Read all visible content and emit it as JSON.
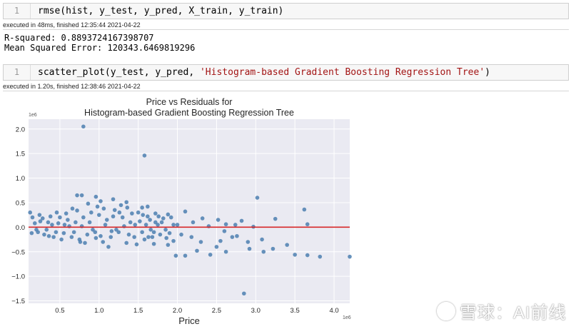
{
  "cells": [
    {
      "line_number": "1",
      "code": "rmse(hist, y_test, y_pred, X_train, y_train)",
      "exec_info": "executed in 48ms, finished 12:35:44 2021-04-22",
      "output": [
        "R-squared: 0.8893724167398707",
        "Mean Squared Error: 120343.6469819296"
      ]
    },
    {
      "line_number": "1",
      "code_prefix": "scatter_plot(y_test, y_pred, ",
      "code_string": "'Histogram-based Gradient Boosting Regression Tree'",
      "code_suffix": ")",
      "exec_info": "executed in 1.20s, finished 12:38:46 2021-04-22"
    }
  ],
  "watermark": "雪球：AI前线",
  "colors": {
    "points": "#4c7fb0",
    "fit_line": "#d62728",
    "plot_bg": "#eaeaf2",
    "grid": "#ffffff"
  },
  "chart_data": {
    "type": "scatter",
    "title": [
      "Price vs Residuals for",
      "Histogram-based Gradient Boosting Regression Tree"
    ],
    "xlabel": "Price",
    "ylabel": "",
    "x_offset_label": "1e6",
    "y_offset_label": "1e6",
    "xlim": [
      0.1,
      4.2
    ],
    "ylim": [
      -1.55,
      2.2
    ],
    "xticks": [
      0.5,
      1.0,
      1.5,
      2.0,
      2.5,
      3.0,
      3.5,
      4.0
    ],
    "xtick_labels": [
      "0.5",
      "1.0",
      "1.5",
      "2.0",
      "2.5",
      "3.0",
      "3.5",
      "4.0"
    ],
    "yticks": [
      -1.5,
      -1.0,
      -0.5,
      0.0,
      0.5,
      1.0,
      1.5,
      2.0
    ],
    "ytick_labels": [
      "−1.5",
      "−1.0",
      "−0.5",
      "0.0",
      "0.5",
      "1.0",
      "1.5",
      "2.0"
    ],
    "grid": true,
    "fit_line": {
      "x": [
        0.1,
        4.2
      ],
      "y": [
        0.0,
        0.0
      ]
    },
    "points": [
      [
        0.8,
        2.05
      ],
      [
        1.58,
        1.46
      ],
      [
        0.72,
        0.65
      ],
      [
        0.78,
        0.65
      ],
      [
        0.96,
        0.62
      ],
      [
        1.18,
        0.57
      ],
      [
        1.02,
        0.53
      ],
      [
        1.35,
        0.51
      ],
      [
        1.62,
        0.42
      ],
      [
        1.55,
        0.4
      ],
      [
        1.72,
        0.28
      ],
      [
        1.88,
        0.26
      ],
      [
        2.1,
        0.32
      ],
      [
        2.32,
        0.18
      ],
      [
        2.52,
        0.15
      ],
      [
        2.82,
        0.13
      ],
      [
        2.74,
        0.05
      ],
      [
        3.02,
        0.6
      ],
      [
        3.25,
        0.17
      ],
      [
        3.62,
        0.36
      ],
      [
        3.66,
        0.06
      ],
      [
        2.62,
        0.06
      ],
      [
        2.97,
        0.01
      ],
      [
        2.2,
        0.1
      ],
      [
        1.92,
        0.2
      ],
      [
        1.63,
        -0.2
      ],
      [
        1.7,
        -0.34
      ],
      [
        1.88,
        -0.36
      ],
      [
        1.95,
        -0.28
      ],
      [
        2.1,
        -0.58
      ],
      [
        2.3,
        -0.3
      ],
      [
        2.42,
        -0.56
      ],
      [
        2.55,
        -0.28
      ],
      [
        2.62,
        -0.5
      ],
      [
        2.76,
        -0.18
      ],
      [
        2.9,
        -0.3
      ],
      [
        3.08,
        -0.25
      ],
      [
        3.1,
        -0.5
      ],
      [
        3.22,
        -0.44
      ],
      [
        3.4,
        -0.36
      ],
      [
        3.5,
        -0.56
      ],
      [
        3.66,
        -0.57
      ],
      [
        3.82,
        -0.6
      ],
      [
        4.22,
        -0.6
      ],
      [
        2.92,
        -0.44
      ],
      [
        2.85,
        -1.35
      ],
      [
        1.98,
        -0.58
      ],
      [
        2.25,
        -0.48
      ],
      [
        2.5,
        -0.4
      ],
      [
        2.18,
        -0.2
      ],
      [
        0.12,
        0.3
      ],
      [
        0.15,
        0.2
      ],
      [
        0.2,
        -0.05
      ],
      [
        0.25,
        0.12
      ],
      [
        0.3,
        -0.15
      ],
      [
        0.35,
        0.1
      ],
      [
        0.4,
        0.05
      ],
      [
        0.45,
        -0.1
      ],
      [
        0.5,
        0.2
      ],
      [
        0.55,
        -0.12
      ],
      [
        0.6,
        0.15
      ],
      [
        0.65,
        -0.2
      ],
      [
        0.7,
        0.1
      ],
      [
        0.75,
        -0.25
      ],
      [
        0.8,
        0.2
      ],
      [
        0.85,
        -0.15
      ],
      [
        0.9,
        0.3
      ],
      [
        0.95,
        -0.1
      ],
      [
        1.0,
        0.25
      ],
      [
        1.05,
        -0.3
      ],
      [
        1.1,
        0.15
      ],
      [
        1.15,
        -0.2
      ],
      [
        1.2,
        0.35
      ],
      [
        1.25,
        -0.1
      ],
      [
        1.3,
        0.2
      ],
      [
        1.35,
        -0.32
      ],
      [
        1.4,
        0.1
      ],
      [
        1.45,
        -0.2
      ],
      [
        1.5,
        0.3
      ],
      [
        1.55,
        -0.1
      ],
      [
        1.6,
        0.05
      ],
      [
        1.65,
        0.15
      ],
      [
        1.7,
        -0.1
      ],
      [
        1.75,
        0.05
      ],
      [
        1.8,
        0.1
      ],
      [
        1.85,
        -0.05
      ],
      [
        0.18,
        0.08
      ],
      [
        0.22,
        -0.1
      ],
      [
        0.28,
        0.18
      ],
      [
        0.33,
        -0.05
      ],
      [
        0.38,
        0.22
      ],
      [
        0.42,
        -0.2
      ],
      [
        0.48,
        0.08
      ],
      [
        0.52,
        -0.25
      ],
      [
        0.58,
        0.28
      ],
      [
        0.62,
        0.02
      ],
      [
        0.68,
        -0.1
      ],
      [
        0.72,
        0.34
      ],
      [
        0.78,
        0.02
      ],
      [
        0.82,
        -0.32
      ],
      [
        0.88,
        0.1
      ],
      [
        0.92,
        -0.05
      ],
      [
        0.98,
        0.42
      ],
      [
        1.02,
        -0.18
      ],
      [
        1.08,
        0.05
      ],
      [
        1.12,
        -0.4
      ],
      [
        1.18,
        0.22
      ],
      [
        1.22,
        -0.05
      ],
      [
        1.28,
        0.45
      ],
      [
        1.32,
        0.02
      ],
      [
        1.38,
        -0.15
      ],
      [
        1.42,
        0.28
      ],
      [
        1.48,
        -0.35
      ],
      [
        1.52,
        0.12
      ],
      [
        1.58,
        -0.25
      ],
      [
        1.62,
        0.22
      ],
      [
        1.68,
        -0.2
      ],
      [
        1.72,
        0.1
      ],
      [
        1.78,
        -0.15
      ],
      [
        1.82,
        0.18
      ],
      [
        1.9,
        -0.12
      ],
      [
        1.95,
        0.05
      ],
      [
        0.14,
        -0.12
      ],
      [
        0.24,
        0.25
      ],
      [
        0.36,
        -0.18
      ],
      [
        0.46,
        0.3
      ],
      [
        0.56,
        0.05
      ],
      [
        0.66,
        0.38
      ],
      [
        0.76,
        -0.3
      ],
      [
        0.86,
        0.48
      ],
      [
        0.96,
        -0.22
      ],
      [
        1.06,
        0.38
      ],
      [
        1.16,
        -0.08
      ],
      [
        1.26,
        0.3
      ],
      [
        1.36,
        0.4
      ],
      [
        1.46,
        0.05
      ],
      [
        1.56,
        0.25
      ],
      [
        1.66,
        -0.05
      ],
      [
        1.76,
        0.22
      ],
      [
        1.86,
        -0.22
      ],
      [
        2.0,
        0.05
      ],
      [
        2.05,
        -0.15
      ],
      [
        2.4,
        0.02
      ],
      [
        2.6,
        -0.08
      ],
      [
        2.7,
        -0.2
      ]
    ]
  }
}
